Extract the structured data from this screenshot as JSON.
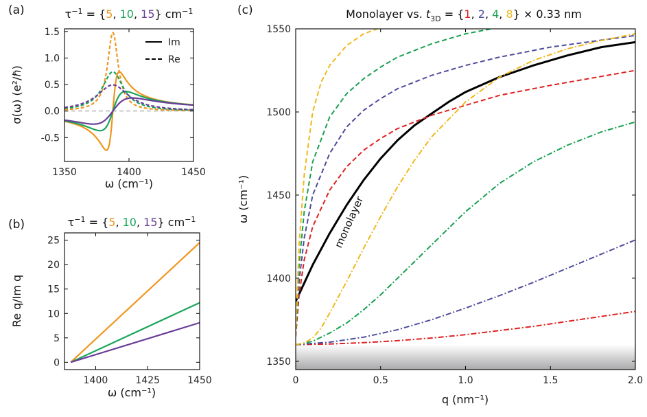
{
  "panels": {
    "a": {
      "letter": "(a)"
    },
    "b": {
      "letter": "(b)"
    },
    "c": {
      "letter": "(c)"
    }
  },
  "chart_data": [
    {
      "id": "a",
      "type": "line",
      "title": {
        "prefix": "τ",
        "sup": "−1",
        "eq": " = {",
        "vals": [
          "5",
          "10",
          "15"
        ],
        "seps": [
          ", ",
          ", "
        ],
        "suffix": "} cm",
        "suffix_sup": "−1"
      },
      "xlabel": "ω (cm⁻¹)",
      "ylabel": "σ(ω) (e²/ℏ)",
      "xlim": [
        1350,
        1450
      ],
      "ylim": [
        -0.95,
        1.55
      ],
      "xticks": [
        "1350",
        "1400",
        "1450"
      ],
      "yticks": [
        "-0.5",
        "0.0",
        "0.5",
        "1.0",
        "1.5"
      ],
      "legend": [
        {
          "label": "Im",
          "style": "solid"
        },
        {
          "label": "Re",
          "style": "dashed"
        }
      ],
      "legend_position": "top-right",
      "model": {
        "omega0": 1387.5,
        "amplitude": 7.4,
        "gammas": [
          5,
          10,
          15
        ]
      },
      "series": [
        {
          "tau_inv": 5,
          "color": "#F0961E"
        },
        {
          "tau_inv": 10,
          "color": "#1AA55A"
        },
        {
          "tau_inv": 15,
          "color": "#6A3D9A"
        }
      ]
    },
    {
      "id": "b",
      "type": "line",
      "title": {
        "prefix": "τ",
        "sup": "−1",
        "eq": " = {",
        "vals": [
          "5",
          "10",
          "15"
        ],
        "seps": [
          ", ",
          ", "
        ],
        "suffix": "} cm",
        "suffix_sup": "−1"
      },
      "xlabel": "ω (cm⁻¹)",
      "ylabel": "Re q/Im q",
      "xlim": [
        1385,
        1450
      ],
      "ylim": [
        -1.5,
        26.5
      ],
      "xticks": [
        "1400",
        "1425",
        "1450"
      ],
      "yticks": [
        "0",
        "5",
        "10",
        "15",
        "20",
        "25"
      ],
      "series": [
        {
          "tau_inv": 5,
          "color": "#F0961E",
          "x": [
            1388,
            1450
          ],
          "y": [
            0,
            24.5
          ]
        },
        {
          "tau_inv": 10,
          "color": "#1AA55A",
          "x": [
            1388,
            1450
          ],
          "y": [
            0,
            12.2
          ]
        },
        {
          "tau_inv": 15,
          "color": "#6A3D9A",
          "x": [
            1388,
            1450
          ],
          "y": [
            0,
            8.1
          ]
        }
      ]
    },
    {
      "id": "c",
      "type": "line",
      "title": {
        "prefix": "Monolayer vs. ",
        "t": "t",
        "t_sub": "3D",
        "eq": " = {",
        "vals": [
          "1",
          "2",
          "4",
          "8"
        ],
        "seps": [
          ", ",
          ", ",
          ", "
        ],
        "suffix": "} × 0.33 nm"
      },
      "xlabel": "q (nm⁻¹)",
      "ylabel": "ω (cm⁻¹)",
      "xlim": [
        0,
        2
      ],
      "ylim": [
        1345,
        1550
      ],
      "xticks": [
        "0",
        "0.5",
        "1.0",
        "1.5",
        "2.0"
      ],
      "yticks": [
        "1350",
        "1400",
        "1450",
        "1500",
        "1550"
      ],
      "annotation": "monolayer",
      "band": {
        "from": 1345,
        "to": 1360
      },
      "series": [
        {
          "name": "monolayer",
          "color": "#000000",
          "style": "solid",
          "x": [
            0,
            0.05,
            0.1,
            0.2,
            0.3,
            0.4,
            0.5,
            0.6,
            0.7,
            0.8,
            0.9,
            1.0,
            1.2,
            1.4,
            1.6,
            1.8,
            2.0
          ],
          "y": [
            1386,
            1397,
            1408,
            1427,
            1444,
            1459,
            1472,
            1483,
            1492,
            1499,
            1506,
            1512,
            1521,
            1528,
            1534,
            1539,
            1542
          ]
        },
        {
          "t3d": 1,
          "color": "#E02020",
          "style": "dashed",
          "x": [
            0,
            0.02,
            0.05,
            0.1,
            0.2,
            0.3,
            0.4,
            0.5,
            0.6,
            0.8,
            1.0,
            1.2,
            1.5,
            2.0
          ],
          "y": [
            1365,
            1390,
            1411,
            1431,
            1453,
            1467,
            1477,
            1484,
            1490,
            1498,
            1504,
            1510,
            1516,
            1525
          ]
        },
        {
          "t3d": 2,
          "color": "#4E4B9C",
          "style": "dashed",
          "x": [
            0,
            0.02,
            0.05,
            0.1,
            0.2,
            0.3,
            0.4,
            0.5,
            0.6,
            0.8,
            1.0,
            1.2,
            1.5,
            2.0
          ],
          "y": [
            1365,
            1398,
            1424,
            1450,
            1475,
            1491,
            1501,
            1508,
            1514,
            1522,
            1528,
            1533,
            1539,
            1546
          ]
        },
        {
          "t3d": 4,
          "color": "#18A050",
          "style": "dashed",
          "x": [
            0,
            0.02,
            0.05,
            0.1,
            0.2,
            0.3,
            0.4,
            0.5,
            0.6,
            0.8,
            1.0,
            1.15
          ],
          "y": [
            1365,
            1408,
            1440,
            1470,
            1497,
            1511,
            1520,
            1527,
            1533,
            1541,
            1547,
            1550
          ]
        },
        {
          "t3d": 8,
          "color": "#F0B818",
          "style": "dashed",
          "x": [
            0,
            0.02,
            0.05,
            0.1,
            0.15,
            0.2,
            0.3,
            0.4,
            0.48
          ],
          "y": [
            1365,
            1420,
            1462,
            1500,
            1518,
            1528,
            1540,
            1547,
            1550
          ]
        },
        {
          "t3d": 1,
          "color": "#E02020",
          "style": "dashdot",
          "x": [
            0,
            0.2,
            0.4,
            0.6,
            0.8,
            1.0,
            1.2,
            1.4,
            1.6,
            1.8,
            2.0
          ],
          "y": [
            1360,
            1360.4,
            1361.2,
            1362.4,
            1364,
            1366,
            1368.5,
            1371,
            1374,
            1377,
            1380
          ]
        },
        {
          "t3d": 2,
          "color": "#4E4B9C",
          "style": "dashdot",
          "x": [
            0,
            0.2,
            0.4,
            0.6,
            0.8,
            1.0,
            1.2,
            1.4,
            1.6,
            1.8,
            2.0
          ],
          "y": [
            1360,
            1361.5,
            1364.5,
            1369,
            1375,
            1382,
            1389.5,
            1397.5,
            1406,
            1414.5,
            1423
          ]
        },
        {
          "t3d": 4,
          "color": "#18A050",
          "style": "dashdot",
          "x": [
            0,
            0.1,
            0.2,
            0.3,
            0.4,
            0.5,
            0.6,
            0.7,
            0.8,
            0.9,
            1.0,
            1.2,
            1.4,
            1.6,
            1.8,
            2.0
          ],
          "y": [
            1360,
            1362,
            1367,
            1373,
            1381,
            1390,
            1400,
            1410,
            1420,
            1430,
            1440,
            1457,
            1470,
            1480,
            1488,
            1494
          ]
        },
        {
          "t3d": 8,
          "color": "#F0B818",
          "style": "dashdot",
          "x": [
            0,
            0.05,
            0.1,
            0.15,
            0.2,
            0.3,
            0.4,
            0.5,
            0.6,
            0.7,
            0.8,
            1.0,
            1.2,
            1.4,
            1.6,
            1.8,
            2.0
          ],
          "y": [
            1360,
            1361,
            1364,
            1370,
            1379,
            1398,
            1418,
            1437,
            1455,
            1471,
            1485,
            1506,
            1521,
            1531,
            1538,
            1543,
            1547
          ]
        }
      ]
    }
  ]
}
